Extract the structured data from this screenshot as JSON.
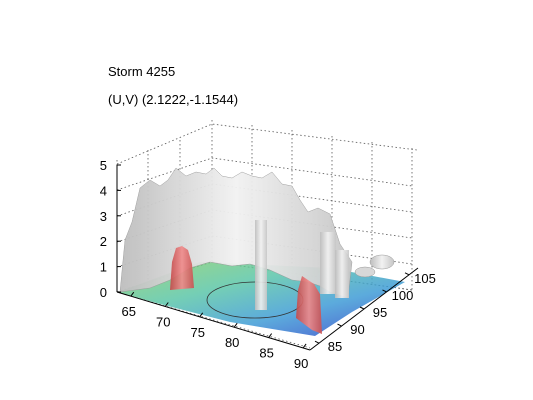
{
  "figure": {
    "title_lines": [
      "Storm 4255",
      "(U,V) (2.1222,-1.1544)"
    ]
  },
  "chart_data": {
    "type": "surface3d",
    "title": "Storm 4255",
    "subtitle": "(U,V) (2.1222,-1.1544)",
    "x_ticks": [
      65,
      70,
      75,
      80,
      85,
      90
    ],
    "y_ticks": [
      85,
      90,
      95,
      100,
      105
    ],
    "z_ticks": [
      0,
      1,
      2,
      3,
      4,
      5
    ],
    "xlim": [
      63,
      91
    ],
    "ylim": [
      83,
      107
    ],
    "zlim": [
      0,
      5
    ],
    "grid": true,
    "elements": [
      {
        "name": "storm-isosurface",
        "color": "#d4d4d4"
      },
      {
        "name": "updraft-core-left",
        "color": "#e06262"
      },
      {
        "name": "updraft-core-right",
        "color": "#e06262"
      },
      {
        "name": "base-colormap-slice",
        "colors": [
          "#2b3cc8",
          "#3f9cd6",
          "#5cc6a8",
          "#8ecf6a"
        ]
      }
    ]
  }
}
